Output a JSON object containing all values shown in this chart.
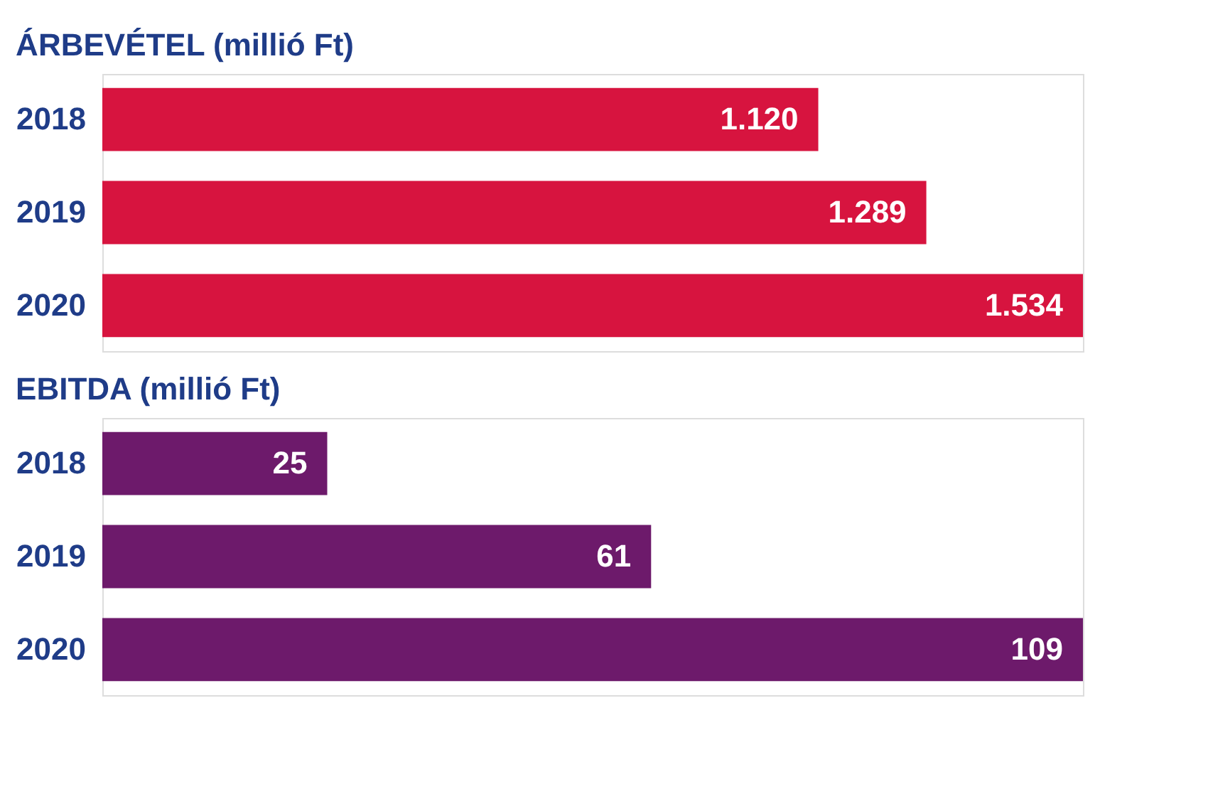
{
  "chart_data": [
    {
      "type": "bar",
      "orientation": "horizontal",
      "title": "ÁRBEVÉTEL (millió Ft)",
      "categories": [
        "2018",
        "2019",
        "2020"
      ],
      "values": [
        1120,
        1289,
        1534
      ],
      "value_labels": [
        "1.120",
        "1.289",
        "1.534"
      ],
      "color": "#d7143f"
    },
    {
      "type": "bar",
      "orientation": "horizontal",
      "title": "EBITDA (millió Ft)",
      "categories": [
        "2018",
        "2019",
        "2020"
      ],
      "values": [
        25,
        61,
        109
      ],
      "data_labels": true,
      "color": "#6d1a6b"
    }
  ]
}
